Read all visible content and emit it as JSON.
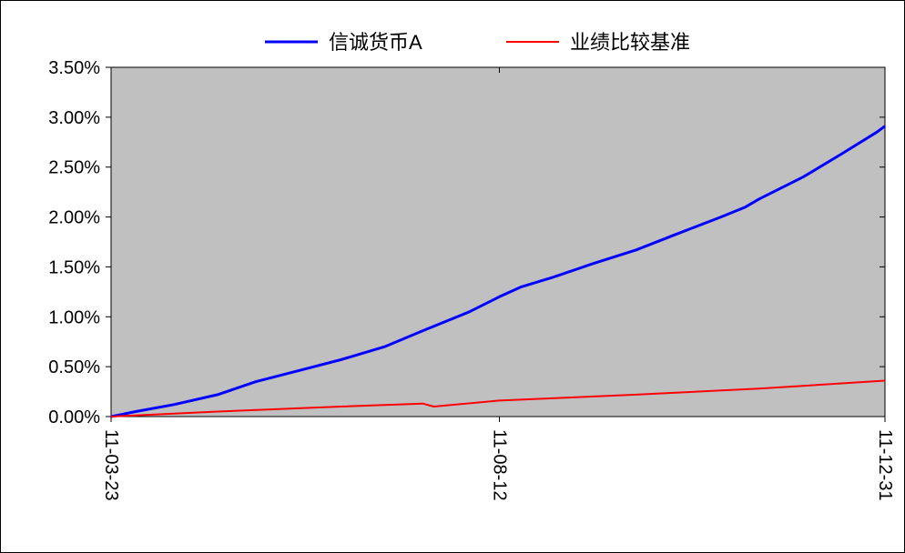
{
  "chart_data": {
    "type": "line",
    "title": "",
    "xlabel": "",
    "ylabel": "",
    "x_tick_labels": [
      "11-03-23",
      "11-08-12",
      "11-12-31"
    ],
    "xlim": [
      "2011-03-23",
      "2011-12-31"
    ],
    "y_tick_labels": [
      "0.00%",
      "0.50%",
      "1.00%",
      "1.50%",
      "2.00%",
      "2.50%",
      "3.00%",
      "3.50%"
    ],
    "ylim": [
      0,
      3.5
    ],
    "y_unit": "%",
    "grid": false,
    "plot_background": "#c0c0c0",
    "legend_position": "top-center",
    "series": [
      {
        "name": "信诚货币A",
        "color": "#0000ff",
        "points": [
          [
            "2011-03-23",
            0.0
          ],
          [
            "2011-04-01",
            0.05
          ],
          [
            "2011-04-15",
            0.12
          ],
          [
            "2011-05-01",
            0.22
          ],
          [
            "2011-05-15",
            0.35
          ],
          [
            "2011-06-01",
            0.47
          ],
          [
            "2011-06-15",
            0.57
          ],
          [
            "2011-07-01",
            0.7
          ],
          [
            "2011-07-15",
            0.86
          ],
          [
            "2011-08-01",
            1.05
          ],
          [
            "2011-08-12",
            1.2
          ],
          [
            "2011-08-20",
            1.3
          ],
          [
            "2011-09-01",
            1.4
          ],
          [
            "2011-09-15",
            1.53
          ],
          [
            "2011-10-01",
            1.67
          ],
          [
            "2011-10-15",
            1.82
          ],
          [
            "2011-11-01",
            2.0
          ],
          [
            "2011-11-10",
            2.1
          ],
          [
            "2011-11-15",
            2.18
          ],
          [
            "2011-12-01",
            2.4
          ],
          [
            "2011-12-15",
            2.63
          ],
          [
            "2011-12-28",
            2.85
          ],
          [
            "2011-12-31",
            2.91
          ]
        ]
      },
      {
        "name": "业绩比较基准",
        "color": "#ff0000",
        "points": [
          [
            "2011-03-23",
            0.0
          ],
          [
            "2011-05-01",
            0.05
          ],
          [
            "2011-06-15",
            0.1
          ],
          [
            "2011-07-15",
            0.13
          ],
          [
            "2011-07-19",
            0.1
          ],
          [
            "2011-08-12",
            0.16
          ],
          [
            "2011-10-01",
            0.22
          ],
          [
            "2011-11-15",
            0.28
          ],
          [
            "2011-12-31",
            0.36
          ]
        ]
      }
    ]
  }
}
